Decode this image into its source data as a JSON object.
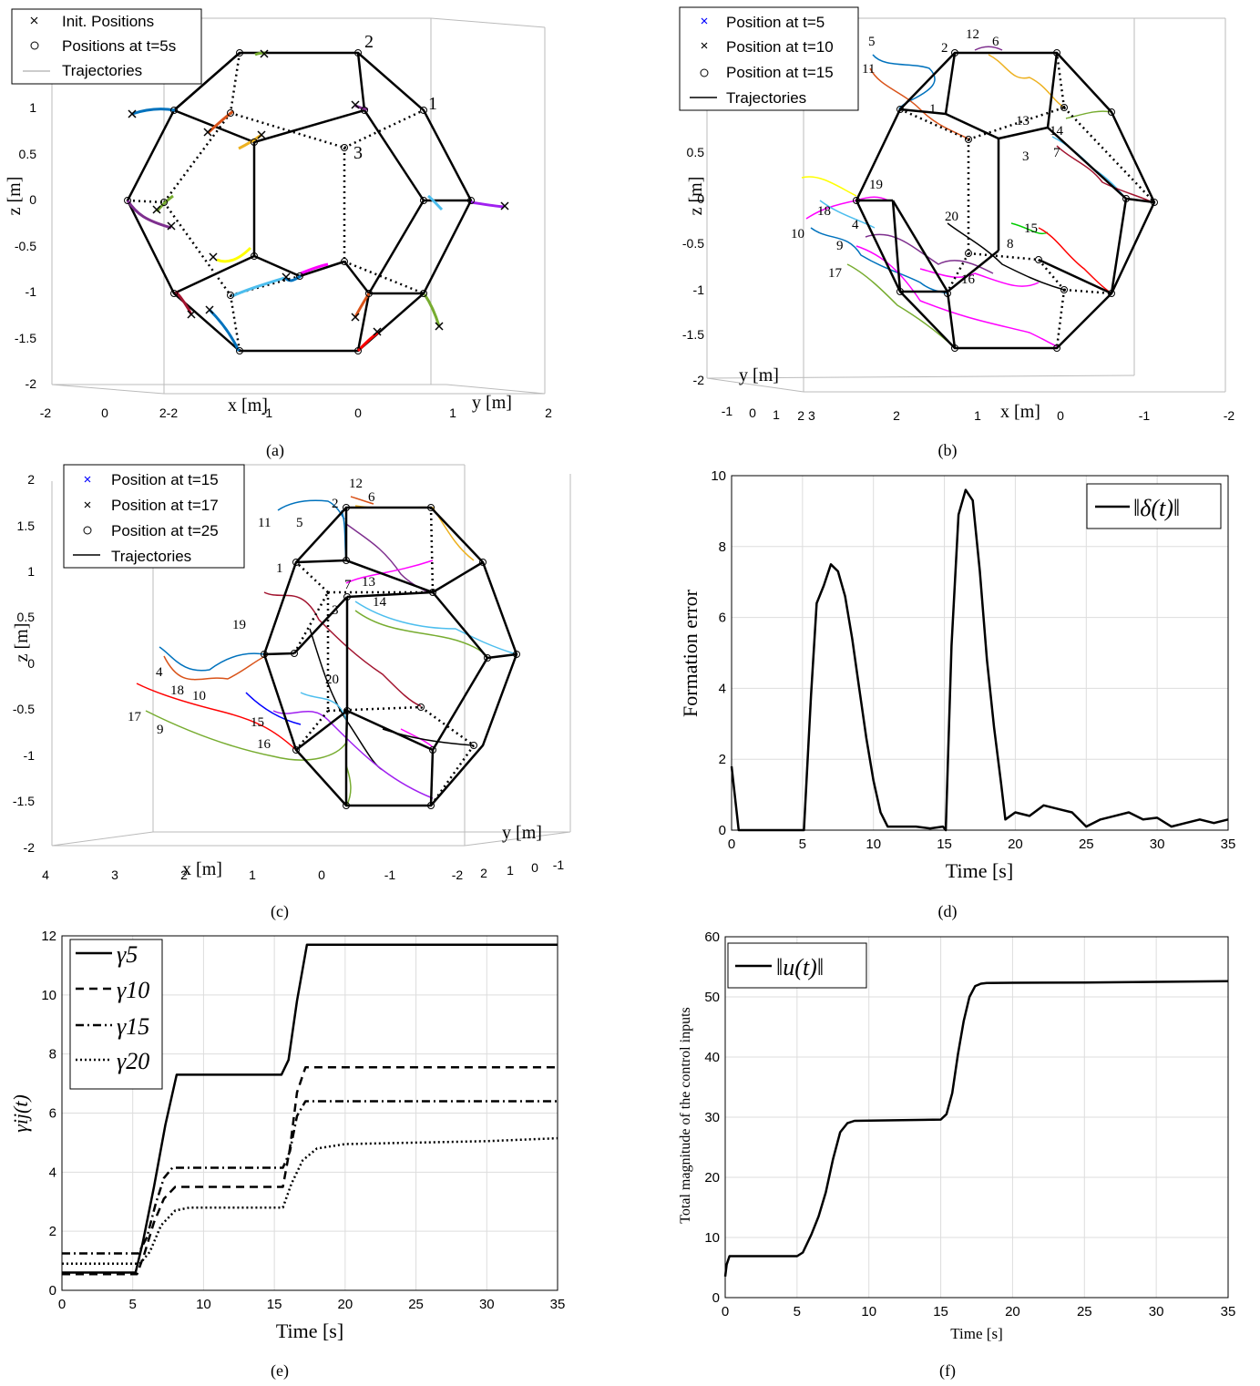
{
  "panels": {
    "a": {
      "caption": "(a)",
      "legend": [
        "Init. Positions",
        "Positions at t=5s",
        "Trajectories"
      ],
      "zlabel": "z [m]",
      "xlabel": "x [m]",
      "ylabel": "y [m]",
      "zticks": [
        "1",
        "0.5",
        "0",
        "-0.5",
        "-1",
        "-1.5",
        "-2"
      ],
      "bottom_ticks": [
        "-2",
        "0",
        "2-2",
        "-1",
        "0",
        "1",
        "2"
      ],
      "vertex_labels": [
        "2",
        "1",
        "3"
      ]
    },
    "b": {
      "caption": "(b)",
      "legend": [
        "Position at t=5",
        "Position at t=10",
        "Position at t=15",
        "Trajectories"
      ],
      "zlabel": "z [m]",
      "xlabel": "x [m]",
      "ylabel": "y [m]",
      "zticks": [
        "0.5",
        "0",
        "-0.5",
        "-1",
        "-1.5",
        "-2"
      ],
      "bottom_ticks": [
        "-1",
        "0",
        "1",
        "2 3",
        "2",
        "1",
        "0",
        "-1",
        "-2"
      ],
      "agent_labels": [
        "5",
        "11",
        "2",
        "12",
        "6",
        "1",
        "13",
        "14",
        "3",
        "7",
        "19",
        "18",
        "4",
        "10",
        "20",
        "15",
        "8",
        "9",
        "17",
        "16"
      ]
    },
    "c": {
      "caption": "(c)",
      "legend": [
        "Position at t=15",
        "Position at t=17",
        "Position at t=25",
        "Trajectories"
      ],
      "zlabel": "z [m]",
      "xlabel": "x [m]",
      "ylabel": "y [m]",
      "zticks": [
        "2",
        "1.5",
        "1",
        "0.5",
        "0",
        "-0.5",
        "-1",
        "-1.5",
        "-2"
      ],
      "bottom_ticks": [
        "4",
        "3",
        "2",
        "1",
        "0",
        "-1",
        "-2",
        "2",
        "1",
        "0",
        "-1"
      ],
      "agent_labels": [
        "12",
        "2",
        "6",
        "11",
        "5",
        "1",
        "7",
        "13",
        "3",
        "14",
        "19",
        "20",
        "4",
        "18",
        "10",
        "17",
        "9",
        "15",
        "16"
      ]
    },
    "d": {
      "caption": "(d)",
      "ylabel": "Formation error",
      "xlabel": "Time [s]",
      "legend": "‖δ(t)‖",
      "xticks": [
        "0",
        "5",
        "10",
        "15",
        "20",
        "25",
        "30",
        "35"
      ],
      "yticks": [
        "0",
        "2",
        "4",
        "6",
        "8",
        "10"
      ]
    },
    "e": {
      "caption": "(e)",
      "ylabel": "γij(t)",
      "xlabel": "Time [s]",
      "legend": [
        "γ5",
        "γ10",
        "γ15",
        "γ20"
      ],
      "xticks": [
        "0",
        "5",
        "10",
        "15",
        "20",
        "25",
        "30",
        "35"
      ],
      "yticks": [
        "0",
        "2",
        "4",
        "6",
        "8",
        "10",
        "12"
      ]
    },
    "f": {
      "caption": "(f)",
      "ylabel": "Total magnitude of the control inputs",
      "xlabel": "Time [s]",
      "legend": "‖u(t)‖",
      "xticks": [
        "0",
        "5",
        "10",
        "15",
        "20",
        "25",
        "30",
        "35"
      ],
      "yticks": [
        "0",
        "10",
        "20",
        "30",
        "40",
        "50",
        "60"
      ]
    }
  },
  "chart_data": [
    {
      "type": "line",
      "panel": "d",
      "xlim": [
        0,
        35
      ],
      "ylim": [
        0,
        10
      ],
      "grid": true,
      "legend_position": "top-right",
      "series": [
        {
          "name": "‖δ(t)‖",
          "x": [
            0,
            0.5,
            4.9,
            5.1,
            5.6,
            6.0,
            6.5,
            7.0,
            7.5,
            8.0,
            8.5,
            9.0,
            9.5,
            10.0,
            10.5,
            11.0,
            11.5,
            12,
            13,
            14,
            14.9,
            15.1,
            15.5,
            16.0,
            16.5,
            17.0,
            17.5,
            18.0,
            18.5,
            19.0,
            19.3,
            20,
            21,
            22,
            23,
            24,
            25,
            26,
            27,
            28,
            29,
            30,
            31,
            32,
            33,
            34,
            35
          ],
          "y": [
            1.8,
            0,
            0,
            0,
            3.8,
            6.4,
            6.9,
            7.5,
            7.3,
            6.6,
            5.4,
            4.0,
            2.6,
            1.4,
            0.5,
            0.1,
            0.1,
            0.1,
            0.1,
            0.05,
            0.1,
            0,
            5.2,
            8.9,
            9.6,
            9.3,
            7.3,
            4.8,
            2.9,
            1.3,
            0.3,
            0.5,
            0.4,
            0.7,
            0.6,
            0.5,
            0.1,
            0.3,
            0.4,
            0.5,
            0.3,
            0.35,
            0.1,
            0.2,
            0.3,
            0.2,
            0.3
          ]
        }
      ]
    },
    {
      "type": "line",
      "panel": "e",
      "xlim": [
        0,
        35
      ],
      "ylim": [
        0,
        12
      ],
      "grid": true,
      "legend_position": "top-left",
      "series": [
        {
          "name": "γ5",
          "x": [
            0,
            5.2,
            5.7,
            6.5,
            7.3,
            8.1,
            15.5,
            16.0,
            16.6,
            17.3,
            35
          ],
          "y": [
            0.6,
            0.6,
            1.6,
            3.5,
            5.6,
            7.3,
            7.3,
            7.8,
            9.8,
            11.7,
            11.7
          ]
        },
        {
          "name": "γ10",
          "x": [
            0,
            5.3,
            5.8,
            6.5,
            7.2,
            8.0,
            15.6,
            16.1,
            16.6,
            17.2,
            35
          ],
          "y": [
            0.55,
            0.55,
            1.2,
            2.3,
            3.1,
            3.5,
            3.5,
            4.8,
            6.7,
            7.55,
            7.55
          ]
        },
        {
          "name": "γ15",
          "x": [
            0,
            5.4,
            6.0,
            6.6,
            7.2,
            7.8,
            15.6,
            16.1,
            16.6,
            17.2,
            35
          ],
          "y": [
            1.25,
            1.25,
            1.8,
            2.9,
            3.8,
            4.15,
            4.15,
            4.7,
            5.9,
            6.4,
            6.4
          ]
        },
        {
          "name": "γ20",
          "x": [
            0,
            5.5,
            6.2,
            7.0,
            8.0,
            9.0,
            15.6,
            16.2,
            17.0,
            18.0,
            20,
            25,
            30,
            35
          ],
          "y": [
            0.9,
            0.9,
            1.3,
            2.2,
            2.7,
            2.8,
            2.8,
            3.6,
            4.4,
            4.8,
            4.95,
            5.0,
            5.05,
            5.15
          ]
        }
      ]
    },
    {
      "type": "line",
      "panel": "f",
      "xlim": [
        0,
        35
      ],
      "ylim": [
        0,
        60
      ],
      "grid": true,
      "legend_position": "top-left",
      "series": [
        {
          "name": "‖u(t)‖",
          "x": [
            0,
            0.1,
            0.3,
            5.0,
            5.4,
            6.0,
            6.5,
            7.0,
            7.5,
            8.0,
            8.5,
            9.0,
            15.0,
            15.4,
            15.8,
            16.2,
            16.6,
            17.0,
            17.4,
            17.8,
            18.2,
            20,
            25,
            30,
            35
          ],
          "y": [
            3.5,
            5.5,
            6.9,
            6.9,
            7.5,
            10.5,
            13.5,
            17.5,
            23.0,
            27.5,
            29.0,
            29.4,
            29.6,
            30.5,
            34.0,
            40.5,
            46.0,
            50.0,
            51.8,
            52.2,
            52.3,
            52.35,
            52.4,
            52.5,
            52.6
          ]
        }
      ]
    }
  ]
}
